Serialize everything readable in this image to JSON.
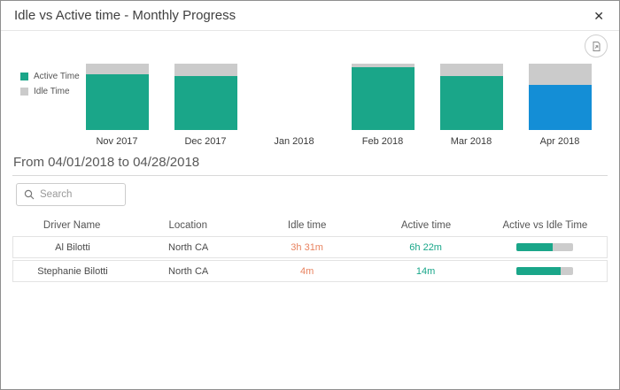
{
  "dialog": {
    "title": "Idle vs Active time - Monthly Progress",
    "close_glyph": "✕"
  },
  "toolbar": {
    "export_icon": "export-report-icon"
  },
  "colors": {
    "active_teal": "#1aa689",
    "idle_gray": "#cbcbcb",
    "selected_blue": "#148ed6",
    "idle_text_orange": "#e8825f",
    "active_text_teal": "#18a689",
    "progress_track": "#cccccc"
  },
  "chart_data": {
    "type": "bar",
    "stacked": true,
    "title": "Idle vs Active time - Monthly Progress",
    "xlabel": "",
    "ylabel": "",
    "ylim": [
      0,
      100
    ],
    "grid": false,
    "legend_position": "left",
    "categories": [
      "Nov 2017",
      "Dec 2017",
      "Jan 2018",
      "Feb 2018",
      "Mar 2018",
      "Apr 2018"
    ],
    "series": [
      {
        "name": "Active Time",
        "color": "#1aa689",
        "values": [
          84,
          81,
          0,
          95,
          81,
          68
        ]
      },
      {
        "name": "Idle Time",
        "color": "#cbcbcb",
        "values": [
          16,
          19,
          0,
          5,
          19,
          32
        ]
      }
    ],
    "highlight": {
      "category": "Apr 2018",
      "active_color": "#148ed6",
      "note": "selected month shown in blue"
    }
  },
  "legend": {
    "items": [
      {
        "label": "Active Time",
        "color": "#1aa689"
      },
      {
        "label": "Idle Time",
        "color": "#cbcbcb"
      }
    ]
  },
  "period_heading": "From 04/01/2018 to 04/28/2018",
  "search": {
    "placeholder": "Search"
  },
  "table": {
    "columns": [
      "Driver Name",
      "Location",
      "Idle time",
      "Active time",
      "Active vs Idle Time"
    ],
    "rows": [
      {
        "driver": "Al Bilotti",
        "location": "North CA",
        "idle": "3h 31m",
        "active": "6h 22m",
        "active_pct": 64
      },
      {
        "driver": "Stephanie Bilotti",
        "location": "North CA",
        "idle": "4m",
        "active": "14m",
        "active_pct": 78
      }
    ]
  }
}
